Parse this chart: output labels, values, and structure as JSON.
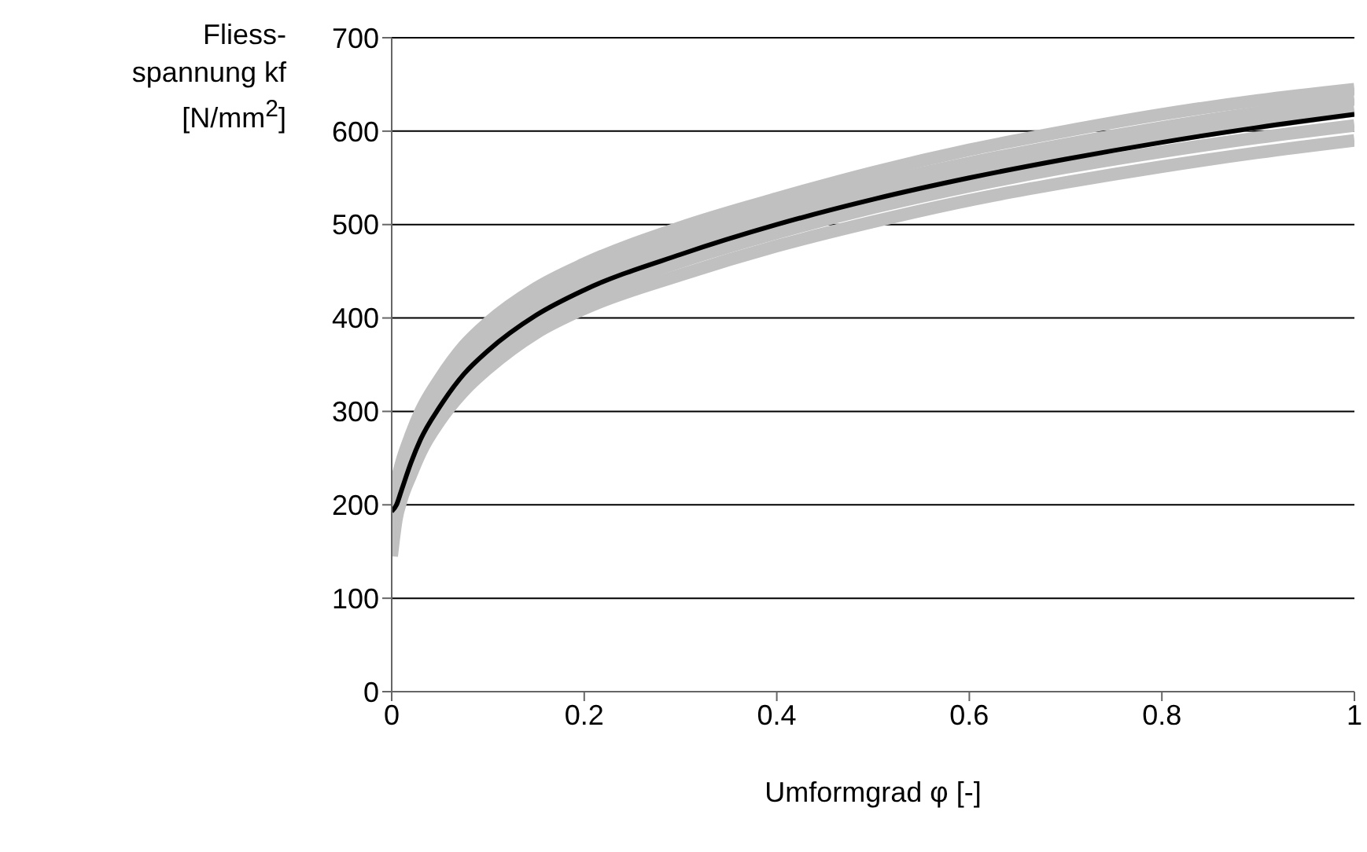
{
  "chart_data": {
    "type": "line",
    "xlabel": "Umformgrad φ [-]",
    "ylabel": "Fliess-\nspannung kf\n[N/mm$^{2}$]",
    "x": [
      0,
      0.005,
      0.01,
      0.02,
      0.03,
      0.05,
      0.075,
      0.1,
      0.15,
      0.2,
      0.3,
      0.4,
      0.5,
      0.6,
      0.7,
      0.8,
      0.9,
      1
    ],
    "series": [
      {
        "color": "#c0c0c0",
        "values": [
          200,
          225,
          245,
          275,
          300,
          335,
          370,
          395,
          432,
          458,
          497,
          528,
          556,
          580,
          600,
          618,
          633,
          645
        ]
      },
      {
        "color": "#c0c0c0",
        "values": [
          195,
          215,
          235,
          265,
          290,
          322,
          357,
          382,
          420,
          446,
          484,
          515,
          543,
          566,
          586,
          604,
          620,
          634
        ]
      },
      {
        "color": "#c0c0c0",
        "values": [
          190,
          205,
          222,
          252,
          278,
          312,
          346,
          371,
          409,
          435,
          473,
          505,
          532,
          555,
          575,
          593,
          608,
          622
        ]
      },
      {
        "color": "#c0c0c0",
        "values": [
          170,
          195,
          212,
          240,
          265,
          300,
          333,
          358,
          396,
          422,
          460,
          491,
          518,
          541,
          561,
          578,
          593,
          606
        ]
      },
      {
        "color": "#c0c0c0",
        "values": [
          145,
          185,
          205,
          232,
          256,
          290,
          322,
          346,
          384,
          410,
          446,
          477,
          503,
          526,
          545,
          562,
          577,
          590
        ]
      },
      {
        "color": "#000000",
        "values": [
          193,
          200,
          215,
          245,
          270,
          305,
          340,
          365,
          403,
          430,
          468,
          500,
          527,
          550,
          570,
          588,
          604,
          618
        ]
      }
    ],
    "xlim": [
      0,
      1
    ],
    "xticks": [
      0,
      0.2,
      0.4,
      0.6,
      0.8,
      1
    ],
    "ylim": [
      0,
      700
    ],
    "yticks": [
      0,
      100,
      200,
      300,
      400,
      500,
      600,
      700
    ],
    "grid": "y",
    "marker": "none",
    "line_style": "solid"
  }
}
